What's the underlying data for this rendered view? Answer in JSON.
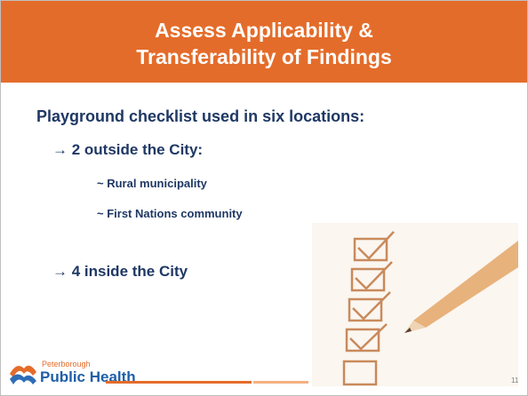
{
  "header": {
    "title": [
      "Assess Applicability &",
      "Transferability of Findings"
    ]
  },
  "body": {
    "heading": "Playground checklist used in six locations:",
    "point_1": "→ 2 outside the City:",
    "sub_points": [
      "~ Rural municipality",
      "~ First Nations community"
    ],
    "point_2": "→ 4 inside the City"
  },
  "logo": {
    "small": "Peterborough",
    "large": "Public Health"
  },
  "page_number": "11"
}
